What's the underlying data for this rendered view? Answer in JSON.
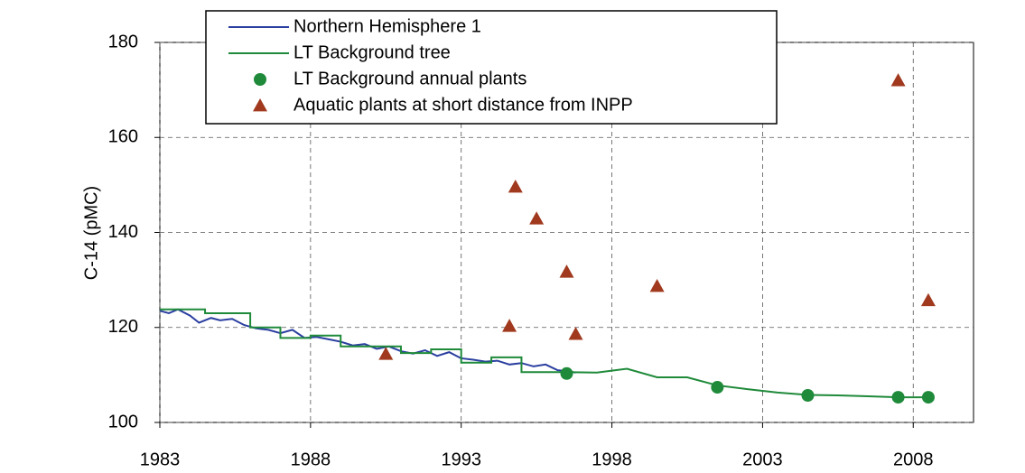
{
  "chart_data": {
    "type": "line",
    "y_label": "C-14 (pMC)",
    "xlim": [
      1983,
      2010
    ],
    "xticks": [
      1983,
      1988,
      1993,
      1998,
      2003,
      2008
    ],
    "ylim": [
      100,
      180
    ],
    "yticks": [
      100,
      120,
      140,
      160,
      180
    ],
    "grid": true,
    "legend": "upper left",
    "series": [
      {
        "name": "Northern Hemisphere 1",
        "color": "#2b3fa0",
        "kind": "line",
        "x": [
          1983,
          1983.3,
          1983.6,
          1984,
          1984.3,
          1984.7,
          1985,
          1985.4,
          1985.8,
          1986.2,
          1986.6,
          1987,
          1987.4,
          1987.8,
          1988.2,
          1988.6,
          1989,
          1989.4,
          1989.8,
          1990.2,
          1990.6,
          1991,
          1991.4,
          1991.8,
          1992.2,
          1992.6,
          1993,
          1993.4,
          1993.8,
          1994.2,
          1994.6,
          1995,
          1995.4,
          1995.8,
          1996.2,
          1996.5,
          1996.8
        ],
        "values": [
          123.5,
          123.0,
          123.8,
          122.5,
          121.0,
          122.0,
          121.5,
          121.8,
          120.5,
          119.8,
          119.5,
          118.8,
          119.5,
          117.8,
          118.0,
          117.5,
          117.0,
          116.2,
          116.5,
          115.5,
          116.0,
          115.0,
          114.5,
          115.2,
          114.0,
          114.8,
          113.5,
          113.2,
          112.8,
          113.0,
          112.2,
          112.5,
          111.8,
          112.2,
          111.0,
          110.8,
          110.5
        ]
      },
      {
        "name": "LT Background tree",
        "color": "#1f8a3a",
        "kind": "line",
        "x": [
          1983,
          1984.5,
          1984.5,
          1986,
          1986,
          1987,
          1987,
          1988,
          1988,
          1989,
          1989,
          1991,
          1991,
          1992,
          1992,
          1993,
          1993,
          1994,
          1994,
          1995,
          1995,
          1996.5,
          1997.5,
          1998.5,
          1999.5,
          2000.5,
          2001.5,
          2002.5,
          2003.5,
          2004.5,
          2005.5,
          2006.5,
          2007.5,
          2008.5
        ],
        "values": [
          123.8,
          123.8,
          123.0,
          123.0,
          120.0,
          120.0,
          117.8,
          117.8,
          118.3,
          118.3,
          116.0,
          116.0,
          114.6,
          114.6,
          115.4,
          115.4,
          112.6,
          112.6,
          113.7,
          113.7,
          110.6,
          110.6,
          110.5,
          111.3,
          109.5,
          109.5,
          107.8,
          107.0,
          106.3,
          105.8,
          105.7,
          105.5,
          105.3,
          105.3
        ]
      },
      {
        "name": "LT Background annual plants",
        "color": "#1f8a3a",
        "kind": "circle",
        "x": [
          1996.5,
          2001.5,
          2004.5,
          2007.5,
          2008.5
        ],
        "values": [
          110.3,
          107.4,
          105.7,
          105.3,
          105.3
        ]
      },
      {
        "name": "Aquatic plants at short distance from INPP",
        "color": "#a0391e",
        "kind": "triangle",
        "x": [
          1990.5,
          1994.6,
          1994.8,
          1995.5,
          1996.5,
          1996.8,
          1999.5,
          2007.5,
          2008.5
        ],
        "values": [
          114.4,
          120.3,
          149.6,
          142.9,
          131.7,
          118.6,
          128.7,
          172.0,
          125.7
        ]
      }
    ]
  }
}
